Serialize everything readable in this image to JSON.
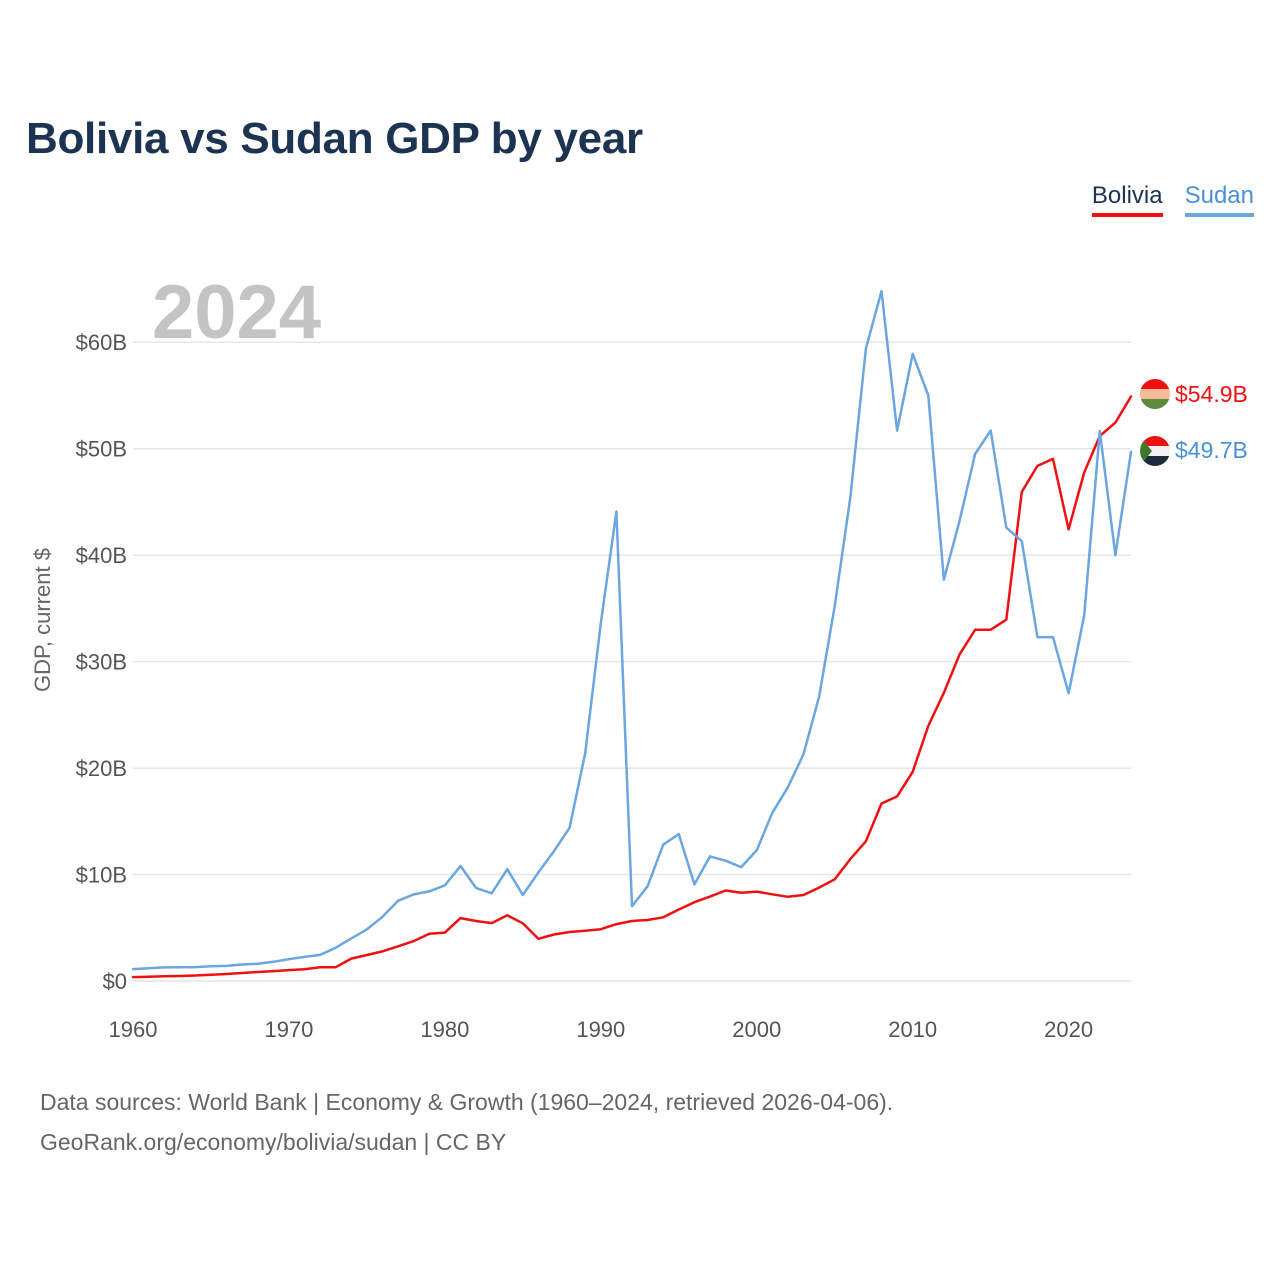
{
  "header": {
    "title": "Bolivia vs Sudan GDP by year"
  },
  "legend": {
    "bolivia_label": "Bolivia",
    "sudan_label": "Sudan"
  },
  "year_watermark": "2024",
  "footer": {
    "line1": "Data sources: World Bank | Economy & Growth (1960–2024, retrieved 2026-04-06).",
    "line2": "GeoRank.org/economy/bolivia/sudan | CC BY"
  },
  "colors": {
    "bolivia": "#ee1111",
    "sudan": "#6ba6e0",
    "grid": "#e6e6e6",
    "axis_text": "#555555"
  },
  "chart_data": {
    "type": "line",
    "title": "Bolivia vs Sudan GDP by year",
    "xlabel": "",
    "ylabel": "GDP, current $",
    "xlim": [
      1960,
      2024
    ],
    "ylim": [
      0,
      65
    ],
    "x_ticks": [
      1960,
      1970,
      1980,
      1990,
      2000,
      2010,
      2020
    ],
    "x_tick_labels": [
      "1960",
      "1970",
      "1980",
      "1990",
      "2000",
      "2010",
      "2020"
    ],
    "y_ticks": [
      0,
      10,
      20,
      30,
      40,
      50,
      60
    ],
    "y_tick_labels": [
      "$0",
      "$10B",
      "$20B",
      "$30B",
      "$40B",
      "$50B",
      "$60B"
    ],
    "unit": "billion USD",
    "x": [
      1960,
      1961,
      1962,
      1963,
      1964,
      1965,
      1966,
      1967,
      1968,
      1969,
      1970,
      1971,
      1972,
      1973,
      1974,
      1975,
      1976,
      1977,
      1978,
      1979,
      1980,
      1981,
      1982,
      1983,
      1984,
      1985,
      1986,
      1987,
      1988,
      1989,
      1990,
      1991,
      1992,
      1993,
      1994,
      1995,
      1996,
      1997,
      1998,
      1999,
      2000,
      2001,
      2002,
      2003,
      2004,
      2005,
      2006,
      2007,
      2008,
      2009,
      2010,
      2011,
      2012,
      2013,
      2014,
      2015,
      2016,
      2017,
      2018,
      2019,
      2020,
      2021,
      2022,
      2023,
      2024
    ],
    "series": [
      {
        "name": "Bolivia",
        "color": "#ee1111",
        "end_label": "$54.9B",
        "values": [
          0.37,
          0.4,
          0.44,
          0.47,
          0.52,
          0.59,
          0.66,
          0.75,
          0.85,
          0.93,
          1.02,
          1.1,
          1.29,
          1.3,
          2.1,
          2.44,
          2.79,
          3.26,
          3.75,
          4.44,
          4.55,
          5.91,
          5.64,
          5.44,
          6.17,
          5.42,
          3.96,
          4.37,
          4.6,
          4.72,
          4.87,
          5.34,
          5.64,
          5.73,
          5.98,
          6.72,
          7.4,
          7.93,
          8.5,
          8.29,
          8.4,
          8.14,
          7.91,
          8.08,
          8.77,
          9.55,
          11.45,
          13.12,
          16.67,
          17.34,
          19.65,
          23.96,
          27.08,
          30.66,
          32.99,
          33.0,
          33.94,
          45.94,
          48.38,
          49.04,
          42.43,
          47.76,
          51.19,
          52.45,
          54.9
        ]
      },
      {
        "name": "Sudan",
        "color": "#6ba6e0",
        "end_label": "$49.7B",
        "values": [
          1.12,
          1.2,
          1.28,
          1.3,
          1.31,
          1.38,
          1.42,
          1.55,
          1.62,
          1.8,
          2.05,
          2.26,
          2.45,
          3.13,
          4.0,
          4.85,
          6.03,
          7.53,
          8.13,
          8.42,
          8.99,
          10.8,
          8.74,
          8.24,
          10.5,
          8.08,
          10.2,
          12.2,
          14.4,
          21.4,
          33.6,
          44.1,
          7.03,
          8.9,
          12.8,
          13.8,
          9.07,
          11.7,
          11.3,
          10.7,
          12.3,
          15.8,
          18.2,
          21.3,
          26.7,
          35.2,
          45.4,
          59.4,
          64.8,
          51.7,
          58.9,
          55.0,
          37.7,
          43.2,
          49.5,
          51.7,
          42.6,
          41.3,
          32.3,
          32.3,
          27.03,
          34.33,
          51.66,
          40.0,
          49.7
        ]
      }
    ]
  }
}
